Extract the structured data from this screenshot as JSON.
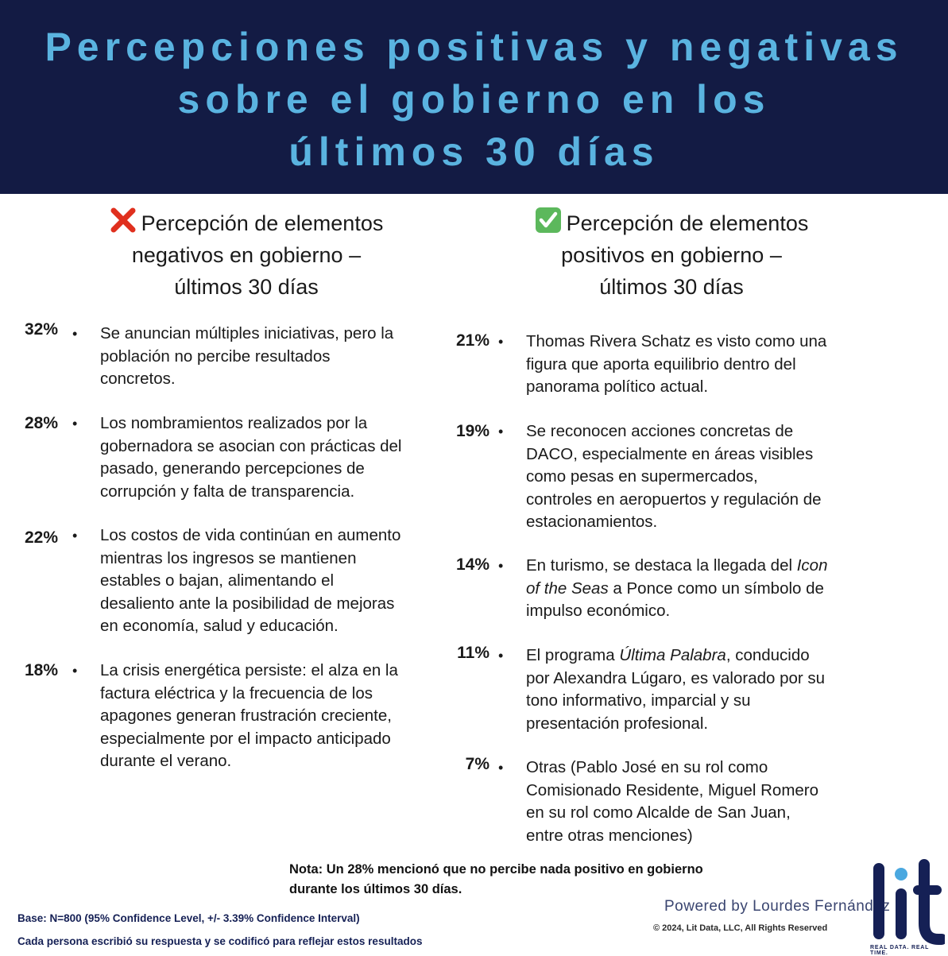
{
  "banner": {
    "title_lines": [
      "Percepciones positivas y negativas",
      "sobre el gobierno en los",
      "últimos 30 días"
    ]
  },
  "negative": {
    "title_lines": [
      "Percepción de elementos",
      "negativos en gobierno –",
      "últimos 30 días"
    ],
    "items": [
      {
        "pct": "32%",
        "lines": [
          "Se anuncian múltiples iniciativas, pero la",
          "población no percibe resultados",
          "concretos."
        ]
      },
      {
        "pct": "28%",
        "lines": [
          "Los nombramientos realizados por la",
          "gobernadora se asocian con prácticas del",
          "pasado, generando percepciones de",
          "corrupción y falta de transparencia."
        ]
      },
      {
        "pct": "22%",
        "lines": [
          "Los costos de vida continúan en aumento",
          "mientras los ingresos se mantienen",
          "estables o bajan, alimentando el",
          "desaliento ante la posibilidad de mejoras",
          "en economía, salud y educación."
        ]
      },
      {
        "pct": "18%",
        "lines": [
          "La crisis energética persiste: el alza en la",
          "factura eléctrica y la frecuencia de los",
          "apagones generan frustración creciente,",
          "especialmente por el impacto anticipado",
          "durante el verano."
        ]
      }
    ]
  },
  "positive": {
    "title_lines": [
      "Percepción de elementos",
      "positivos en gobierno –",
      "últimos 30 días"
    ],
    "items": [
      {
        "pct": "21%",
        "lines": [
          "Thomas Rivera Schatz es visto como una",
          "figura que aporta equilibrio dentro del",
          "panorama político actual."
        ]
      },
      {
        "pct": "19%",
        "lines": [
          "Se reconocen acciones concretas de",
          "DACO, especialmente en áreas visibles",
          "como pesas en supermercados,",
          "controles en aeropuertos y regulación de",
          "estacionamientos."
        ]
      },
      {
        "pct": "14%",
        "line1_pre": "En turismo, se destaca la llegada del ",
        "line1_italic": "Icon",
        "line2_italic": "of the Seas",
        "line2_post": " a Ponce como un símbolo de",
        "line3": "impulso económico."
      },
      {
        "pct": "11%",
        "line1_pre": "El programa ",
        "line1_italic": "Última Palabra",
        "line1_post": ", conducido",
        "line2": "por Alexandra Lúgaro, es valorado por su",
        "line3": "tono informativo, imparcial y su",
        "line4": "presentación profesional."
      },
      {
        "pct": "7%",
        "lines": [
          "Otras (Pablo José en su rol como",
          "Comisionado Residente, Miguel Romero",
          "en su rol como Alcalde de San Juan,",
          "entre otras menciones)"
        ]
      }
    ]
  },
  "bullet": "•",
  "nota_lines": [
    "Nota: Un 28% mencionó que no percibe nada positivo en gobierno",
    "durante los últimos 30 días."
  ],
  "footer": {
    "base": "Base: N=800 (95% Confidence Level, +/- 3.39% Confidence Interval)",
    "method": "Cada persona escribió su respuesta y se codificó para reflejar estos resultados",
    "powered": "Powered by Lourdes Fernández",
    "copyright": "© 2024, Lit Data, LLC, All Rights Reserved",
    "logo_text": "lit",
    "tagline": "REAL DATA. REAL TIME."
  },
  "colors": {
    "banner_bg": "#131b44",
    "banner_text": "#5ab3e0",
    "logo": "#152055",
    "logo_dot": "#4aa8e0"
  },
  "icons": {
    "negative": "cross-mark-icon",
    "positive": "check-mark-icon"
  }
}
